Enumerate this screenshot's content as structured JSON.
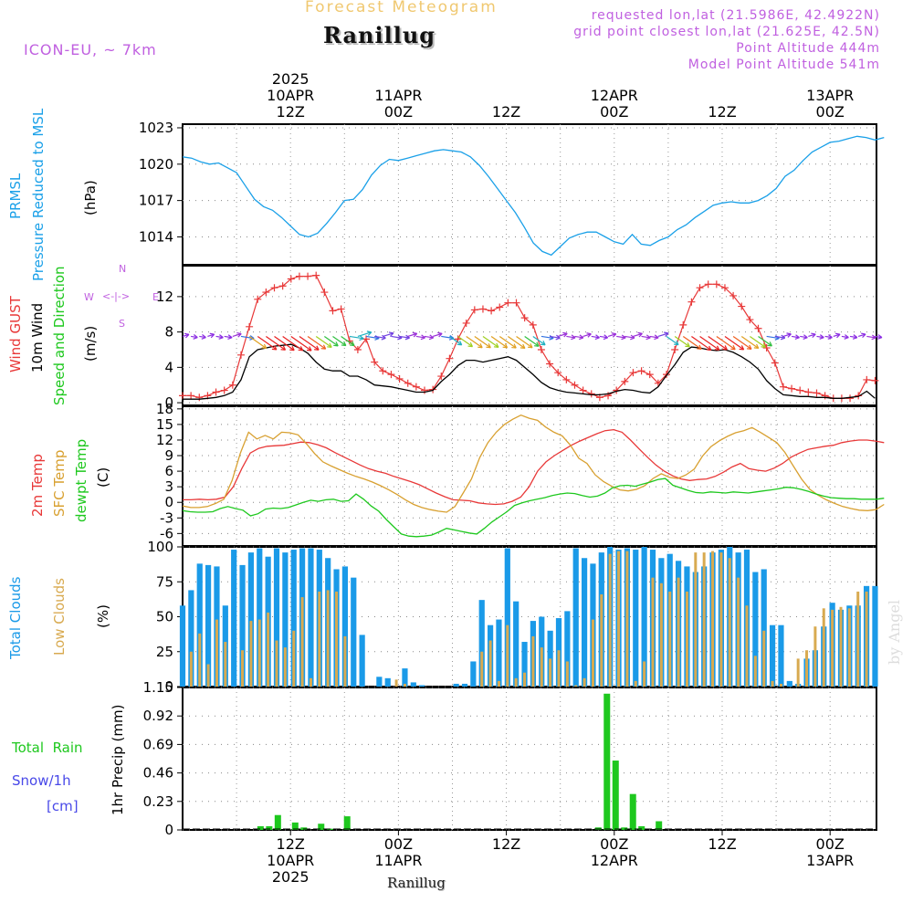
{
  "header": {
    "faint_title": "Forecast Meteogram",
    "location": "Ranillug",
    "model": "ICON-EU, ~ 7km",
    "requested": "requested lon,lat (21.5986E, 42.4922N)",
    "gridpoint": "grid point closest lon,lat (21.625E, 42.5N)",
    "point_alt": "Point Altitude 444m",
    "model_alt": "Model Point Altitude 541m",
    "footer_location": "Ranillug",
    "watermark": "by Angel"
  },
  "colors": {
    "pressure": "#1aa0e8",
    "gust": "#e83838",
    "wind": "#000000",
    "winddir": "#1ec81e",
    "t2m": "#e83838",
    "tsfc": "#d8a030",
    "dewpt": "#1ec81e",
    "total_clouds": "#1a9ae8",
    "low_clouds": "#d8aa50",
    "rain": "#1ec81e",
    "snow": "#4848e8"
  },
  "time_labels": {
    "top": [
      {
        "idx": 12,
        "lines": [
          "2025",
          "10APR",
          "12Z"
        ]
      },
      {
        "idx": 24,
        "lines": [
          "11APR",
          "00Z"
        ]
      },
      {
        "idx": 36,
        "lines": [
          "12Z"
        ]
      },
      {
        "idx": 48,
        "lines": [
          "12APR",
          "00Z"
        ]
      },
      {
        "idx": 60,
        "lines": [
          "12Z"
        ]
      },
      {
        "idx": 72,
        "lines": [
          "13APR",
          "00Z"
        ]
      }
    ],
    "bottom": [
      {
        "idx": 12,
        "lines": [
          "12Z",
          "10APR",
          "2025"
        ]
      },
      {
        "idx": 24,
        "lines": [
          "00Z",
          "11APR"
        ]
      },
      {
        "idx": 36,
        "lines": [
          "12Z"
        ]
      },
      {
        "idx": 48,
        "lines": [
          "00Z",
          "12APR"
        ]
      },
      {
        "idx": 60,
        "lines": [
          "12Z"
        ]
      },
      {
        "idx": 72,
        "lines": [
          "00Z",
          "13APR"
        ]
      }
    ]
  },
  "labels": {
    "prmsl": "PRMSL",
    "prmsl_long": "Pressure Reduced to MSL",
    "hpa": "(hPa)",
    "wind_gust": "Wind GUST",
    "wind_10m": "10m Wind",
    "wind_sd": "Speed and Direction",
    "ms": "(m/s)",
    "compass_n": "N",
    "compass_s": "S",
    "compass_w": "W",
    "compass_e": "E",
    "temp_2m": "2m Temp",
    "temp_sfc": "SFC Temp",
    "temp_dew": "dewpt Temp",
    "celsius": "(C)",
    "total_clouds": "Total Clouds",
    "low_clouds": "Low Clouds",
    "pct": "(%)",
    "total_rain": "Total  Rain",
    "snow": "Snow/1h",
    "cm": "[cm]",
    "precip": "1hr Precip (mm)"
  },
  "chart_data": [
    {
      "type": "line",
      "title": "PRMSL Pressure Reduced to MSL",
      "ylabel": "(hPa)",
      "ylim": [
        1011.7,
        1023.3
      ],
      "yticks": [
        1014,
        1017,
        1020,
        1023
      ],
      "x_hours_from_10APR_00Z": [
        0,
        78
      ],
      "series": [
        {
          "name": "PRMSL",
          "values": [
            1020.6,
            1020.5,
            1020.2,
            1020.0,
            1020.1,
            1019.7,
            1019.3,
            1018.2,
            1017.1,
            1016.5,
            1016.2,
            1015.6,
            1014.9,
            1014.2,
            1014.0,
            1014.3,
            1015.1,
            1016.0,
            1017.0,
            1017.1,
            1017.9,
            1019.1,
            1019.9,
            1020.4,
            1020.3,
            1020.5,
            1020.7,
            1020.9,
            1021.1,
            1021.2,
            1021.1,
            1021.0,
            1020.6,
            1019.9,
            1019.0,
            1018.0,
            1017.0,
            1016.0,
            1014.8,
            1013.5,
            1012.8,
            1012.5,
            1013.2,
            1013.9,
            1014.2,
            1014.4,
            1014.4,
            1014.0,
            1013.6,
            1013.4,
            1014.2,
            1013.4,
            1013.3,
            1013.7,
            1014.0,
            1014.6,
            1015.0,
            1015.6,
            1016.1,
            1016.6,
            1016.8,
            1016.9,
            1016.8,
            1016.8,
            1017.0,
            1017.4,
            1018.0,
            1019.0,
            1019.5,
            1020.3,
            1021.0,
            1021.4,
            1021.8,
            1021.9,
            1022.1,
            1022.3,
            1022.2,
            1022.0,
            1022.2
          ]
        }
      ]
    },
    {
      "type": "line",
      "title": "Wind GUST / 10m Wind Speed and Direction",
      "ylabel": "(m/s)",
      "ylim": [
        -0.3,
        15.5
      ],
      "yticks": [
        0,
        4,
        8,
        12
      ],
      "series": [
        {
          "name": "Wind GUST",
          "values": [
            0.8,
            0.8,
            0.6,
            0.8,
            1.2,
            1.4,
            2.0,
            5.4,
            8.6,
            11.7,
            12.5,
            13.0,
            13.2,
            14.0,
            14.3,
            14.3,
            14.4,
            12.5,
            10.4,
            10.6,
            7.0,
            6.0,
            7.2,
            4.6,
            3.6,
            3.2,
            2.7,
            2.2,
            1.8,
            1.4,
            1.5,
            3.0,
            5.0,
            7.2,
            9.0,
            10.5,
            10.6,
            10.4,
            10.8,
            11.3,
            11.3,
            9.6,
            8.8,
            6.0,
            4.4,
            3.4,
            2.6,
            2.0,
            1.4,
            1.0,
            0.6,
            0.8,
            1.4,
            2.4,
            3.4,
            3.6,
            3.2,
            2.2,
            3.2,
            6.0,
            8.8,
            11.4,
            13.0,
            13.4,
            13.4,
            13.0,
            12.1,
            10.9,
            9.4,
            8.4,
            6.2,
            4.5,
            1.8,
            1.6,
            1.4,
            1.2,
            1.1,
            0.8,
            0.5,
            0.5,
            0.5,
            0.8,
            2.6,
            2.5
          ]
        },
        {
          "name": "10m Wind",
          "values": [
            0.4,
            0.4,
            0.4,
            0.5,
            0.6,
            0.8,
            1.2,
            2.6,
            5.2,
            6.0,
            6.2,
            6.4,
            6.5,
            6.6,
            6.2,
            5.6,
            4.6,
            3.8,
            3.6,
            3.6,
            3.0,
            3.0,
            2.6,
            2.0,
            1.9,
            1.8,
            1.6,
            1.4,
            1.2,
            1.2,
            1.4,
            2.4,
            3.2,
            4.2,
            4.8,
            4.8,
            4.6,
            4.8,
            5.0,
            5.2,
            4.8,
            4.0,
            3.2,
            2.3,
            1.7,
            1.4,
            1.2,
            1.1,
            1.0,
            0.9,
            0.9,
            1.0,
            1.3,
            1.5,
            1.4,
            1.2,
            1.1,
            1.8,
            3.1,
            4.3,
            5.7,
            6.3,
            6.2,
            6.0,
            5.9,
            6.0,
            5.7,
            5.2,
            4.6,
            3.8,
            2.5,
            1.6,
            0.9,
            0.8,
            0.7,
            0.7,
            0.6,
            0.6,
            0.5,
            0.5,
            0.6,
            0.7,
            1.3,
            0.5
          ]
        }
      ]
    },
    {
      "type": "line",
      "title": "2m Temp / SFC Temp / dewpt Temp",
      "ylabel": "(C)",
      "ylim": [
        -8.4,
        18.5
      ],
      "yticks": [
        -6,
        -3,
        0,
        3,
        6,
        9,
        12,
        15,
        18
      ],
      "series": [
        {
          "name": "2m Temp",
          "values": [
            0.5,
            0.5,
            0.6,
            0.5,
            0.6,
            1.0,
            3.0,
            6.5,
            9.5,
            10.4,
            10.8,
            10.9,
            11.0,
            11.3,
            11.6,
            11.5,
            11.1,
            10.5,
            9.6,
            8.8,
            8.0,
            7.2,
            6.5,
            6.0,
            5.6,
            5.0,
            4.5,
            4.0,
            3.4,
            2.6,
            1.8,
            1.1,
            0.5,
            0.4,
            0.3,
            -0.1,
            -0.3,
            -0.4,
            -0.3,
            0.2,
            1.0,
            3.0,
            6.0,
            7.8,
            9.0,
            10.0,
            11.0,
            11.8,
            12.5,
            13.2,
            13.8,
            14.0,
            13.5,
            12.0,
            10.3,
            8.7,
            7.2,
            6.0,
            5.1,
            4.5,
            4.2,
            4.4,
            4.5,
            5.0,
            5.8,
            6.8,
            7.5,
            6.5,
            6.2,
            6.0,
            6.6,
            7.5,
            8.7,
            9.5,
            10.2,
            10.5,
            10.8,
            11.0,
            11.5,
            11.8,
            12.0,
            12.0,
            11.8,
            11.5
          ]
        },
        {
          "name": "SFC Temp",
          "values": [
            -0.7,
            -1.0,
            -1.0,
            -0.8,
            -0.2,
            0.6,
            4.2,
            9.5,
            13.5,
            12.2,
            12.9,
            12.2,
            13.5,
            13.4,
            13.0,
            11.3,
            9.4,
            7.8,
            7.0,
            6.3,
            5.6,
            5.0,
            4.5,
            3.9,
            3.2,
            2.4,
            1.5,
            0.5,
            -0.4,
            -1.0,
            -1.4,
            -1.7,
            -1.9,
            -0.8,
            1.8,
            4.5,
            8.6,
            11.5,
            13.5,
            15.0,
            16.0,
            16.8,
            16.2,
            15.8,
            14.5,
            13.5,
            12.8,
            11.0,
            8.5,
            7.5,
            5.3,
            4.0,
            3.1,
            2.4,
            2.2,
            2.5,
            3.2,
            4.6,
            5.5,
            4.8,
            4.6,
            5.3,
            6.4,
            8.9,
            10.7,
            11.8,
            12.7,
            13.4,
            13.8,
            14.4,
            13.5,
            12.5,
            11.5,
            9.6,
            7.0,
            4.5,
            2.5,
            1.4,
            0.5,
            -0.2,
            -0.8,
            -1.2,
            -1.5,
            -1.6,
            -1.4,
            -0.4
          ]
        },
        {
          "name": "dewpt Temp",
          "values": [
            -1.6,
            -1.8,
            -1.9,
            -1.9,
            -1.8,
            -1.2,
            -0.8,
            -1.2,
            -1.5,
            -2.6,
            -2.2,
            -1.3,
            -1.1,
            -1.2,
            -1.0,
            -0.5,
            0.0,
            0.4,
            0.2,
            0.5,
            0.6,
            0.2,
            0.3,
            1.6,
            0.6,
            -0.7,
            -1.7,
            -3.3,
            -4.7,
            -6.1,
            -6.5,
            -6.6,
            -6.5,
            -6.3,
            -5.7,
            -5.0,
            -5.3,
            -5.6,
            -5.9,
            -6.1,
            -5.0,
            -3.8,
            -2.8,
            -1.8,
            -0.6,
            -0.1,
            0.3,
            0.6,
            0.9,
            1.3,
            1.6,
            1.8,
            1.7,
            1.3,
            1.0,
            1.2,
            1.8,
            2.8,
            3.2,
            3.3,
            3.1,
            3.5,
            3.9,
            4.4,
            4.6,
            3.3,
            2.8,
            2.3,
            1.9,
            1.8,
            2.0,
            1.9,
            1.8,
            2.0,
            1.9,
            1.8,
            2.0,
            2.2,
            2.4,
            2.6,
            2.9,
            2.8,
            2.5,
            2.1,
            1.6,
            1.2,
            0.9,
            0.8,
            0.7,
            0.7,
            0.6,
            0.6,
            0.6,
            0.8
          ]
        }
      ]
    },
    {
      "type": "bar",
      "title": "Total Clouds / Low Clouds",
      "ylabel": "(%)",
      "ylim": [
        0,
        100
      ],
      "yticks": [
        0,
        25,
        50,
        75,
        100
      ],
      "series": [
        {
          "name": "Total Clouds",
          "values": [
            58,
            69,
            88,
            87,
            86,
            58,
            98,
            87,
            96,
            99,
            93,
            99,
            96,
            98,
            99,
            99,
            98,
            92,
            84,
            86,
            78,
            37,
            0,
            7,
            6,
            0,
            13,
            3,
            1,
            0,
            0,
            0,
            2,
            2,
            18,
            62,
            44,
            48,
            99,
            61,
            32,
            47,
            50,
            40,
            49,
            54,
            99,
            92,
            88,
            96,
            100,
            98,
            99,
            98,
            100,
            98,
            92,
            95,
            90,
            86,
            82,
            86,
            96,
            98,
            100,
            96,
            98,
            82,
            84,
            44,
            44,
            4,
            2,
            20,
            26,
            43,
            60,
            55,
            58,
            58,
            72,
            72
          ]
        },
        {
          "name": "Low Clouds",
          "values": [
            0,
            25,
            38,
            16,
            48,
            32,
            0,
            26,
            47,
            48,
            53,
            33,
            28,
            40,
            64,
            6,
            68,
            69,
            68,
            36,
            0,
            0,
            0,
            0,
            0,
            5,
            2,
            0,
            0,
            0,
            0,
            0,
            0,
            0,
            0,
            25,
            33,
            4,
            44,
            6,
            10,
            36,
            28,
            20,
            26,
            18,
            1,
            6,
            48,
            66,
            95,
            97,
            97,
            4,
            18,
            78,
            74,
            68,
            78,
            68,
            96,
            96,
            97,
            96,
            92,
            78,
            58,
            22,
            40,
            4,
            2,
            0,
            20,
            26,
            43,
            56,
            55,
            57,
            56,
            68,
            68
          ]
        }
      ]
    },
    {
      "type": "bar",
      "title": "1hr Precip (mm) Total Rain / Snow/1h [cm]",
      "ylabel": "1hr Precip (mm)",
      "ylim": [
        0,
        1.15
      ],
      "yticks": [
        0,
        0.23,
        0.46,
        0.69,
        0.92,
        1.15
      ],
      "series": [
        {
          "name": "Total Rain",
          "values": [
            0,
            0,
            0,
            0,
            0,
            0,
            0,
            0,
            0,
            0.03,
            0.03,
            0.12,
            0,
            0.06,
            0.02,
            0,
            0.05,
            0.01,
            0,
            0.11,
            0,
            0,
            0,
            0,
            0,
            0,
            0,
            0,
            0,
            0,
            0,
            0,
            0,
            0,
            0,
            0,
            0,
            0,
            0,
            0,
            0,
            0,
            0,
            0,
            0,
            0,
            0,
            0,
            0.02,
            1.1,
            0.56,
            0.02,
            0.29,
            0.03,
            0,
            0.07,
            0,
            0,
            0,
            0,
            0,
            0,
            0,
            0,
            0,
            0,
            0,
            0,
            0,
            0,
            0,
            0,
            0,
            0,
            0,
            0,
            0,
            0,
            0,
            0,
            0,
            0
          ]
        },
        {
          "name": "Snow/1h",
          "values": []
        }
      ]
    }
  ]
}
